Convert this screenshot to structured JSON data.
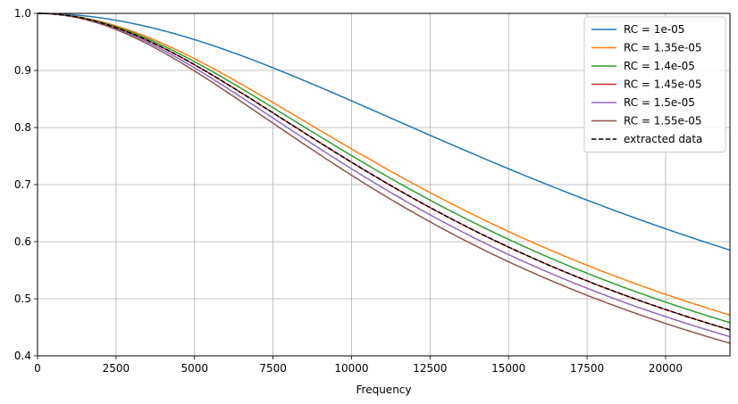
{
  "chart_data": {
    "type": "line",
    "title": "",
    "xlabel": "Frequency",
    "ylabel": "",
    "xlim": [
      0,
      22050
    ],
    "ylim": [
      0.4,
      1.0
    ],
    "xticks": [
      0,
      2500,
      5000,
      7500,
      10000,
      12500,
      15000,
      17500,
      20000
    ],
    "xtick_labels": [
      "0",
      "2500",
      "5000",
      "7500",
      "10000",
      "12500",
      "15000",
      "17500",
      "20000"
    ],
    "yticks": [
      0.4,
      0.5,
      0.6,
      0.7,
      0.8,
      0.9,
      1.0
    ],
    "ytick_labels": [
      "0.4",
      "0.5",
      "0.6",
      "0.7",
      "0.8",
      "0.9",
      "1.0"
    ],
    "grid": true,
    "legend_position": "top-right",
    "series": [
      {
        "name": "RC = 1e-05",
        "rc": 1e-05,
        "color": "#1f77b4",
        "dash": "solid"
      },
      {
        "name": "RC = 1.35e-05",
        "rc": 1.35e-05,
        "color": "#ff7f0e",
        "dash": "solid"
      },
      {
        "name": "RC = 1.4e-05",
        "rc": 1.4e-05,
        "color": "#2ca02c",
        "dash": "solid"
      },
      {
        "name": "RC = 1.45e-05",
        "rc": 1.45e-05,
        "color": "#d62728",
        "dash": "solid"
      },
      {
        "name": "RC = 1.5e-05",
        "rc": 1.5e-05,
        "color": "#9467bd",
        "dash": "solid"
      },
      {
        "name": "RC = 1.55e-05",
        "rc": 1.55e-05,
        "color": "#8c564b",
        "dash": "solid"
      },
      {
        "name": "extracted data",
        "rc": 1.45e-05,
        "color": "#000000",
        "dash": "dashed"
      }
    ]
  }
}
